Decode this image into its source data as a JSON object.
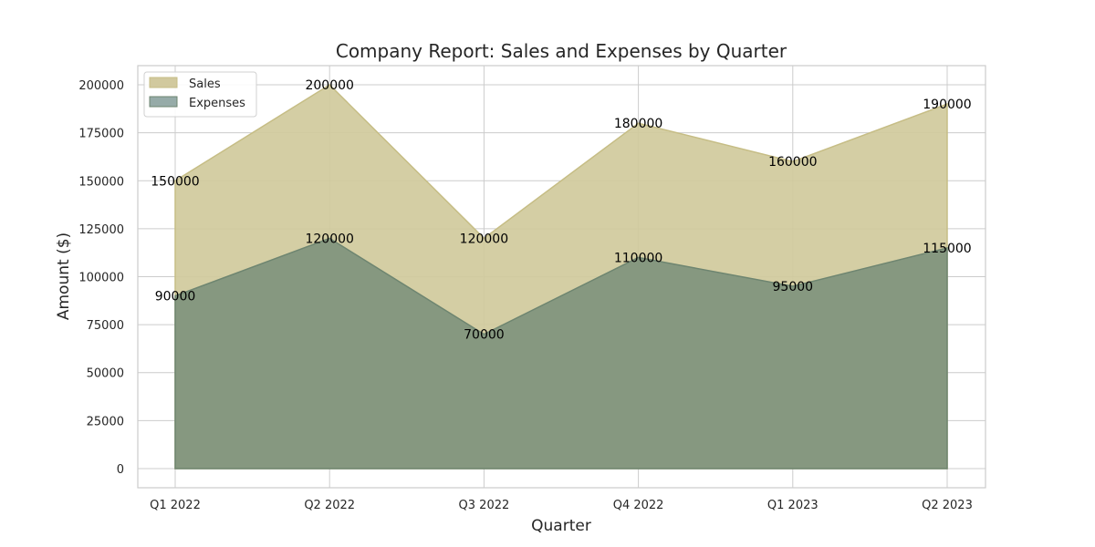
{
  "chart_data": {
    "type": "area",
    "title": "Company Report: Sales and Expenses by Quarter",
    "xlabel": "Quarter",
    "ylabel": "Amount ($)",
    "categories": [
      "Q1 2022",
      "Q2 2022",
      "Q3 2022",
      "Q4 2022",
      "Q1 2023",
      "Q2 2023"
    ],
    "series": [
      {
        "name": "Sales",
        "values": [
          150000,
          200000,
          120000,
          180000,
          160000,
          190000
        ],
        "color": "#d0ca9c",
        "edge": "#c6bd85"
      },
      {
        "name": "Expenses",
        "values": [
          90000,
          120000,
          70000,
          110000,
          95000,
          115000
        ],
        "color": "#7f947d",
        "edge": "#6e8570"
      }
    ],
    "ylim": [
      -10000,
      210000
    ],
    "yticks": [
      0,
      25000,
      50000,
      75000,
      100000,
      125000,
      150000,
      175000,
      200000
    ],
    "grid": true,
    "legend": "top-left",
    "legend_swatch_colors": [
      "#d1c99e",
      "#96aba8"
    ]
  }
}
